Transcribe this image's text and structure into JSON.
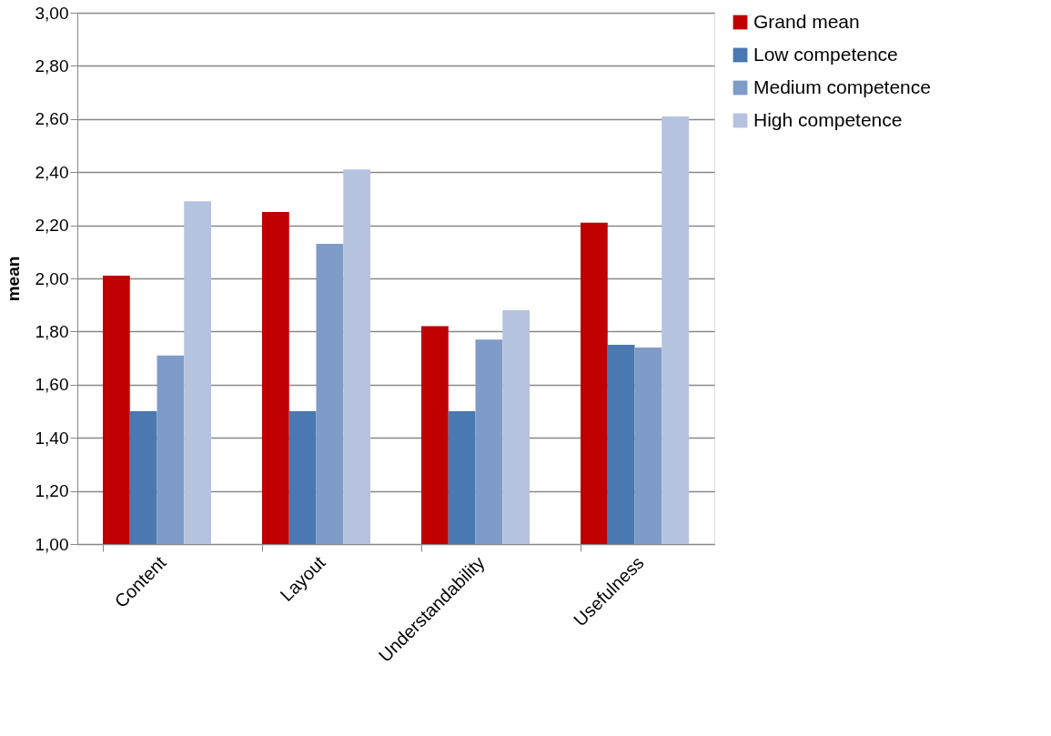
{
  "chart_data": {
    "type": "bar",
    "ylabel": "mean",
    "categories": [
      "Content",
      "Layout",
      "Understandability",
      "Usefulness"
    ],
    "series": [
      {
        "name": "Grand mean",
        "color": "#c00000",
        "values": [
          2.01,
          2.25,
          1.82,
          2.21
        ]
      },
      {
        "name": "Low competence",
        "color": "#4a78b0",
        "values": [
          1.5,
          1.5,
          1.5,
          1.75
        ]
      },
      {
        "name": "Medium competence",
        "color": "#7f9cc8",
        "values": [
          1.71,
          2.13,
          1.77,
          1.74
        ]
      },
      {
        "name": "High competence",
        "color": "#b5c3de",
        "values": [
          2.29,
          2.41,
          1.88,
          2.61
        ]
      }
    ],
    "ylim": [
      1.0,
      3.0
    ],
    "yticks": [
      {
        "value": 1.0,
        "label": "1,00"
      },
      {
        "value": 1.2,
        "label": "1,20"
      },
      {
        "value": 1.4,
        "label": "1,40"
      },
      {
        "value": 1.6,
        "label": "1,60"
      },
      {
        "value": 1.8,
        "label": "1,80"
      },
      {
        "value": 2.0,
        "label": "2,00"
      },
      {
        "value": 2.2,
        "label": "2,20"
      },
      {
        "value": 2.4,
        "label": "2,40"
      },
      {
        "value": 2.6,
        "label": "2,60"
      },
      {
        "value": 2.8,
        "label": "2,80"
      },
      {
        "value": 3.0,
        "label": "3,00"
      }
    ],
    "grid": "y",
    "legend": "right"
  }
}
